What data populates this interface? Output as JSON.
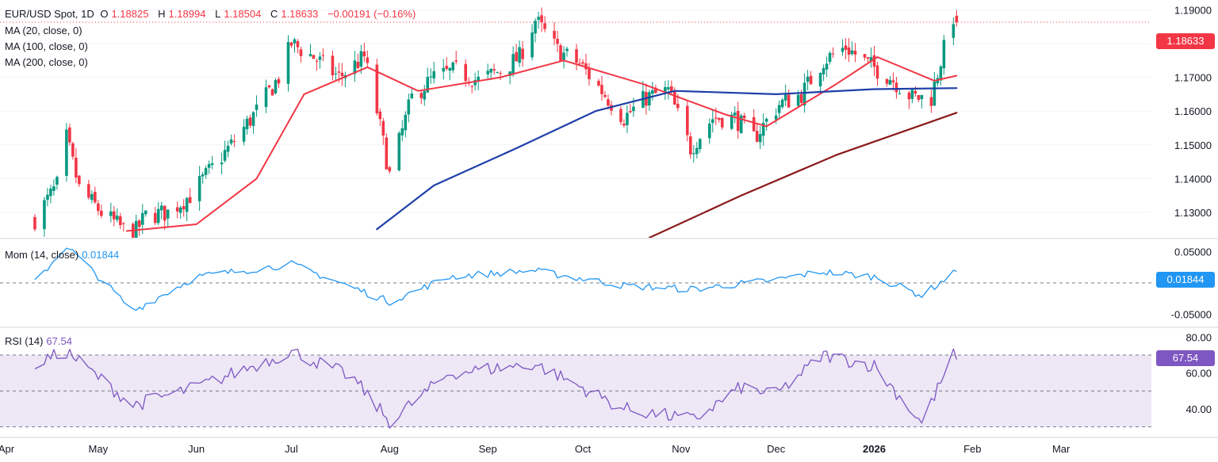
{
  "header": {
    "symbol": "EUR/USD Spot, 1D",
    "open_label": "O",
    "open": "1.18825",
    "high_label": "H",
    "high": "1.18994",
    "low_label": "L",
    "low": "1.18504",
    "close_label": "C",
    "close": "1.18633",
    "change": "−0.00191 (−0.16%)"
  },
  "indicators": {
    "ma20": "MA (20, close, 0)",
    "ma100": "MA (100, close, 0)",
    "ma200": "MA (200, close, 0)",
    "mom_label": "Mom (14, close)",
    "mom_value": "0.01844",
    "rsi_label": "RSI (14)",
    "rsi_value": "67.54"
  },
  "price_tags": {
    "last_price": "1.18633",
    "mom": "0.01844",
    "rsi": "67.54"
  },
  "colors": {
    "bull": "#089981",
    "bear": "#f23645",
    "ma20": "#f23645",
    "ma100": "#1e3fa8",
    "ma200": "#8b1a1a",
    "mom": "#2196f3",
    "rsi": "#7e57c2",
    "rsi_band": "#ede7f6"
  },
  "chart_data": [
    {
      "type": "candlestick",
      "ylim": [
        1.1225,
        1.1915
      ],
      "y_ticks": [
        "1.19000",
        "1.18000",
        "1.17000",
        "1.16000",
        "1.15000",
        "1.14000",
        "1.13000"
      ],
      "x_ticks": [
        "Apr",
        "May",
        "Jun",
        "Jul",
        "Aug",
        "Sep",
        "Oct",
        "Nov",
        "Dec",
        "2026",
        "Feb",
        "Mar"
      ],
      "start_date": "2025-04-11",
      "ohlc_close_anchors": [
        [
          "2025-04-11",
          1.128
        ],
        [
          "2025-04-18",
          1.138
        ],
        [
          "2025-04-21",
          1.152
        ],
        [
          "2025-04-25",
          1.137
        ],
        [
          "2025-05-02",
          1.13
        ],
        [
          "2025-05-09",
          1.125
        ],
        [
          "2025-05-12",
          1.123
        ],
        [
          "2025-05-16",
          1.129
        ],
        [
          "2025-05-23",
          1.13
        ],
        [
          "2025-05-30",
          1.135
        ],
        [
          "2025-06-05",
          1.142
        ],
        [
          "2025-06-12",
          1.15
        ],
        [
          "2025-06-20",
          1.16
        ],
        [
          "2025-06-27",
          1.17
        ],
        [
          "2025-07-01",
          1.18
        ],
        [
          "2025-07-08",
          1.176
        ],
        [
          "2025-07-16",
          1.17
        ],
        [
          "2025-07-24",
          1.176
        ],
        [
          "2025-07-28",
          1.16
        ],
        [
          "2025-08-01",
          1.141
        ],
        [
          "2025-08-08",
          1.164
        ],
        [
          "2025-08-15",
          1.17
        ],
        [
          "2025-08-22",
          1.172
        ],
        [
          "2025-08-29",
          1.169
        ],
        [
          "2025-09-05",
          1.172
        ],
        [
          "2025-09-11",
          1.176
        ],
        [
          "2025-09-16",
          1.187
        ],
        [
          "2025-09-23",
          1.178
        ],
        [
          "2025-09-30",
          1.174
        ],
        [
          "2025-10-07",
          1.166
        ],
        [
          "2025-10-14",
          1.158
        ],
        [
          "2025-10-21",
          1.164
        ],
        [
          "2025-10-28",
          1.166
        ],
        [
          "2025-11-04",
          1.149
        ],
        [
          "2025-11-11",
          1.158
        ],
        [
          "2025-11-18",
          1.158
        ],
        [
          "2025-11-24",
          1.152
        ],
        [
          "2025-12-02",
          1.162
        ],
        [
          "2025-12-09",
          1.165
        ],
        [
          "2025-12-16",
          1.175
        ],
        [
          "2025-12-23",
          1.179
        ],
        [
          "2025-12-30",
          1.174
        ],
        [
          "2026-01-06",
          1.17
        ],
        [
          "2026-01-13",
          1.164
        ],
        [
          "2026-01-19",
          1.164
        ],
        [
          "2026-01-22",
          1.175
        ],
        [
          "2026-01-26",
          1.188
        ],
        [
          "2026-01-27",
          1.1863
        ]
      ],
      "last_candle": {
        "open": 1.18825,
        "high": 1.18994,
        "low": 1.18504,
        "close": 1.18633
      },
      "ma20": [
        [
          "2025-05-10",
          1.1245
        ],
        [
          "2025-06-01",
          1.1265
        ],
        [
          "2025-06-20",
          1.14
        ],
        [
          "2025-07-05",
          1.165
        ],
        [
          "2025-07-25",
          1.173
        ],
        [
          "2025-08-10",
          1.166
        ],
        [
          "2025-09-05",
          1.17
        ],
        [
          "2025-09-25",
          1.175
        ],
        [
          "2025-10-20",
          1.168
        ],
        [
          "2025-11-15",
          1.159
        ],
        [
          "2025-11-28",
          1.1555
        ],
        [
          "2025-12-20",
          1.168
        ],
        [
          "2026-01-02",
          1.176
        ],
        [
          "2026-01-20",
          1.169
        ],
        [
          "2026-01-27",
          1.1705
        ]
      ],
      "ma100": [
        [
          "2025-07-28",
          1.125
        ],
        [
          "2025-08-15",
          1.138
        ],
        [
          "2025-09-10",
          1.149
        ],
        [
          "2025-10-05",
          1.16
        ],
        [
          "2025-10-30",
          1.166
        ],
        [
          "2025-12-01",
          1.165
        ],
        [
          "2026-01-01",
          1.1665
        ],
        [
          "2026-01-27",
          1.1668
        ]
      ],
      "ma200": [
        [
          "2025-10-22",
          1.1225
        ],
        [
          "2025-11-20",
          1.135
        ],
        [
          "2025-12-20",
          1.147
        ],
        [
          "2026-01-27",
          1.1595
        ]
      ]
    },
    {
      "type": "line",
      "name": "Mom (14, close)",
      "ylim": [
        -0.07,
        0.07
      ],
      "y_ticks": [
        "0.05000",
        "0.00000",
        "-0.05000"
      ],
      "anchors": [
        [
          "2025-04-11",
          0.0
        ],
        [
          "2025-04-21",
          0.06
        ],
        [
          "2025-05-05",
          -0.01
        ],
        [
          "2025-05-12",
          -0.045
        ],
        [
          "2025-06-01",
          0.01
        ],
        [
          "2025-07-01",
          0.03
        ],
        [
          "2025-08-01",
          -0.03
        ],
        [
          "2025-08-20",
          0.01
        ],
        [
          "2025-09-15",
          0.02
        ],
        [
          "2025-10-15",
          -0.005
        ],
        [
          "2025-11-05",
          -0.01
        ],
        [
          "2025-12-01",
          0.005
        ],
        [
          "2025-12-15",
          0.018
        ],
        [
          "2026-01-01",
          0.01
        ],
        [
          "2026-01-16",
          -0.02
        ],
        [
          "2026-01-27",
          0.01844
        ]
      ]
    },
    {
      "type": "line",
      "name": "RSI (14)",
      "ylim": [
        25,
        85
      ],
      "y_ticks": [
        "80.00",
        "60.00",
        "40.00"
      ],
      "levels": [
        70,
        50,
        30
      ],
      "anchors": [
        [
          "2025-04-11",
          65
        ],
        [
          "2025-04-21",
          72
        ],
        [
          "2025-05-12",
          42
        ],
        [
          "2025-06-01",
          52
        ],
        [
          "2025-07-01",
          72
        ],
        [
          "2025-07-20",
          58
        ],
        [
          "2025-08-01",
          33
        ],
        [
          "2025-08-20",
          60
        ],
        [
          "2025-09-16",
          65
        ],
        [
          "2025-10-14",
          40
        ],
        [
          "2025-11-05",
          34
        ],
        [
          "2025-11-20",
          52
        ],
        [
          "2025-12-01",
          48
        ],
        [
          "2025-12-16",
          70
        ],
        [
          "2026-01-01",
          64
        ],
        [
          "2026-01-16",
          32
        ],
        [
          "2026-01-26",
          70
        ],
        [
          "2026-01-27",
          67.54
        ]
      ]
    }
  ]
}
